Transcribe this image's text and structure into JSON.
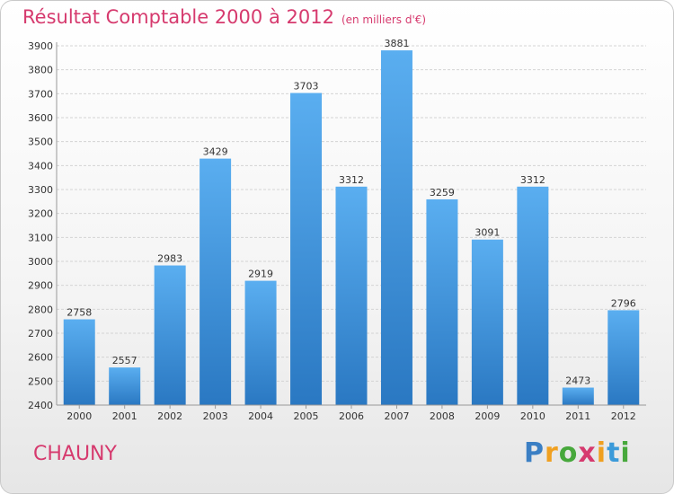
{
  "title": "Résultat Comptable 2000 à 2012",
  "subtitle": "(en milliers d'€)",
  "location": "CHAUNY",
  "brand": {
    "letters": [
      "P",
      "r",
      "o",
      "x",
      "i",
      "t",
      "i"
    ],
    "colors": [
      "#3b7fc4",
      "#f0a020",
      "#47a83c",
      "#d63a6e",
      "#f0a020",
      "#3b9ad9",
      "#47a83c"
    ]
  },
  "colors": {
    "accent": "#d63a6e",
    "bar_top": "#5aaef0",
    "bar_bottom": "#2a78c2",
    "grid": "#d4d4d4",
    "axis_text": "#333333"
  },
  "chart_data": {
    "type": "bar",
    "title": "Résultat Comptable 2000 à 2012",
    "xlabel": "",
    "ylabel": "",
    "categories": [
      "2000",
      "2001",
      "2002",
      "2003",
      "2004",
      "2005",
      "2006",
      "2007",
      "2008",
      "2009",
      "2010",
      "2011",
      "2012"
    ],
    "values": [
      2758,
      2557,
      2983,
      3429,
      2919,
      3703,
      3312,
      3881,
      3259,
      3091,
      3312,
      2473,
      2796
    ],
    "ylim": [
      2400,
      3900
    ],
    "yticks": [
      2400,
      2500,
      2600,
      2700,
      2800,
      2900,
      3000,
      3100,
      3200,
      3300,
      3400,
      3500,
      3600,
      3700,
      3800,
      3900
    ],
    "grid": true,
    "legend": "none"
  }
}
